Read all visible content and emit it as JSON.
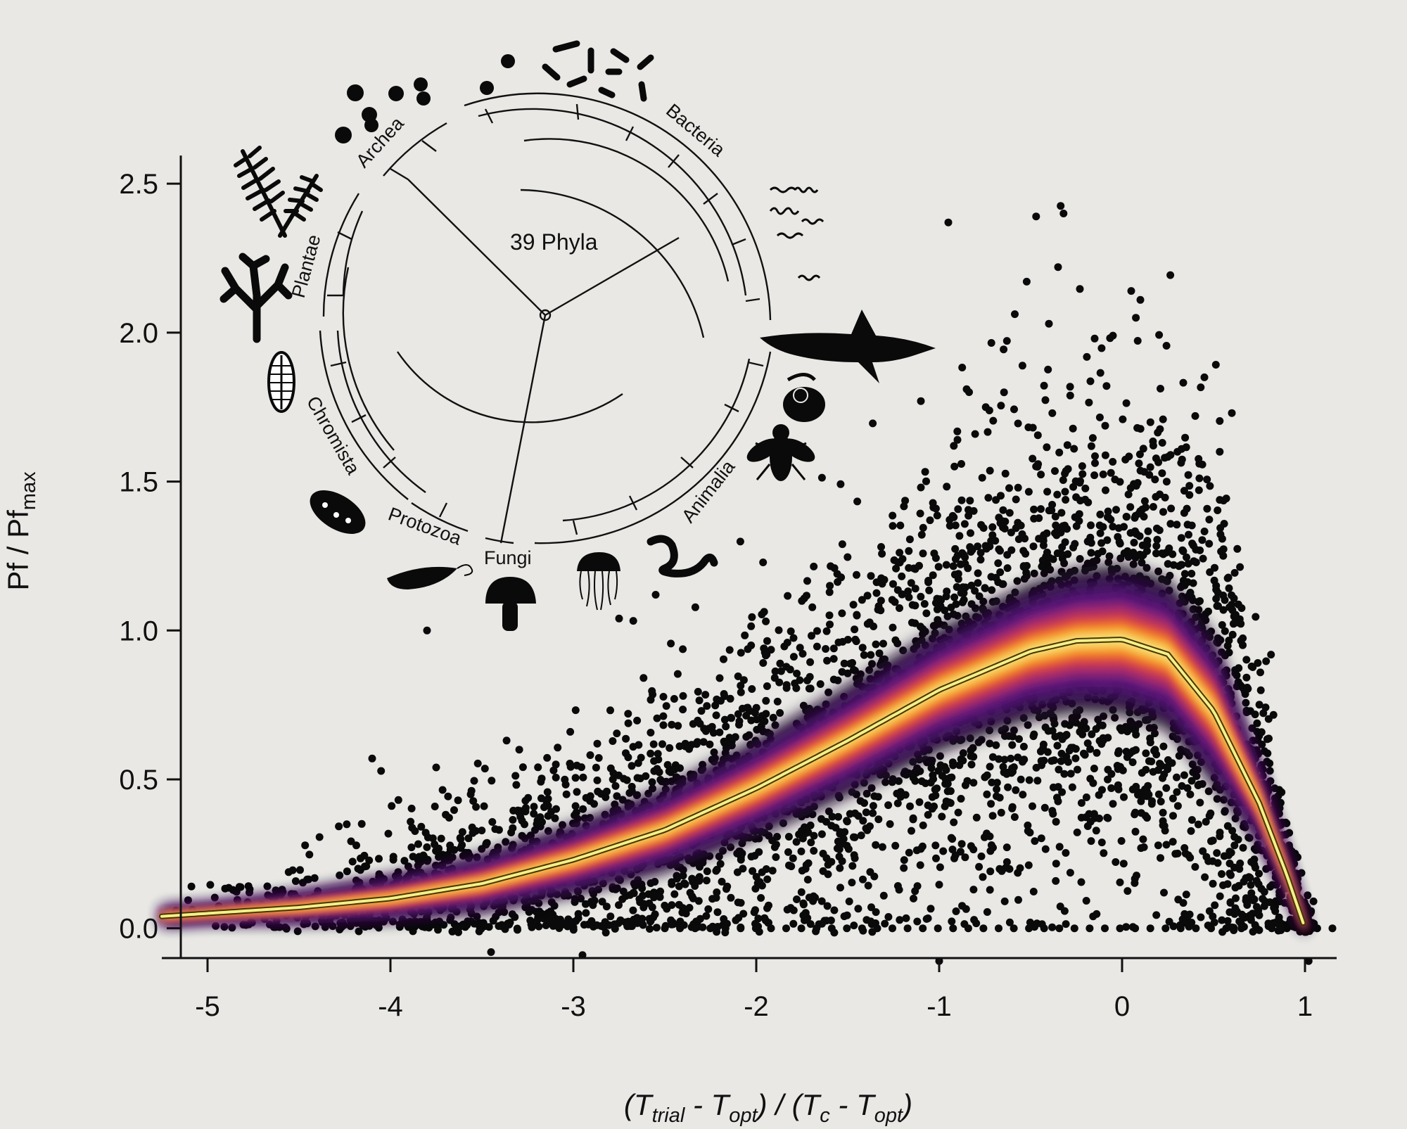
{
  "chart_data": {
    "type": "scatter",
    "subtype": "density-scatter with fitted curve",
    "title": "",
    "xlabel": "(T_trial - T_opt) / (T_c - T_opt)",
    "xlabel_parts": [
      "(T",
      "trial",
      " - T",
      "opt",
      ") / (T",
      "c",
      " - T",
      "opt",
      ")"
    ],
    "ylabel": "Pf / Pf_max",
    "ylabel_parts": [
      "Pf / Pf",
      "max"
    ],
    "xlim": [
      -5.25,
      1.25
    ],
    "ylim": [
      -0.1,
      2.55
    ],
    "xticks": [
      -5,
      -4,
      -3,
      -2,
      -1,
      0,
      1
    ],
    "xtick_labels": [
      "-5",
      "-4",
      "-3",
      "-2",
      "-1",
      "0",
      "1"
    ],
    "yticks": [
      0.0,
      0.5,
      1.0,
      1.5,
      2.0,
      2.5
    ],
    "ytick_labels": [
      "0.0",
      "0.5",
      "1.0",
      "1.5",
      "2.0",
      "2.5"
    ],
    "grid": false,
    "legend": "none",
    "fit_curve": {
      "x": [
        -5.25,
        -5.0,
        -4.5,
        -4.0,
        -3.5,
        -3.0,
        -2.5,
        -2.0,
        -1.5,
        -1.0,
        -0.5,
        -0.25,
        0.0,
        0.25,
        0.5,
        0.75,
        0.9,
        1.0
      ],
      "y": [
        0.04,
        0.05,
        0.07,
        0.1,
        0.15,
        0.23,
        0.33,
        0.47,
        0.63,
        0.8,
        0.93,
        0.965,
        0.97,
        0.92,
        0.73,
        0.42,
        0.18,
        0.0
      ],
      "color": "#f3f08a",
      "outline_color": "#4a3500"
    },
    "density_colors": [
      "#1a0a28",
      "#3a0d5e",
      "#6b1a84",
      "#a52a6e",
      "#d8434c",
      "#f2782c",
      "#f9b02e",
      "#f6e98a"
    ],
    "scatter_color": "#0a0a0a",
    "outlier_points": [
      {
        "x": -0.95,
        "y": 2.37
      },
      {
        "x": -0.47,
        "y": 2.39
      },
      {
        "x": -0.32,
        "y": 2.4
      },
      {
        "x": -0.35,
        "y": 2.22
      },
      {
        "x": -0.4,
        "y": 2.03
      },
      {
        "x": 0.05,
        "y": 2.14
      },
      {
        "x": 0.1,
        "y": 2.11
      },
      {
        "x": -0.15,
        "y": 1.98
      },
      {
        "x": -0.05,
        "y": 1.99
      },
      {
        "x": 0.45,
        "y": 1.85
      },
      {
        "x": -0.85,
        "y": 1.81
      },
      {
        "x": 0.6,
        "y": 1.73
      },
      {
        "x": -1.1,
        "y": 1.77
      },
      {
        "x": -0.92,
        "y": 1.62
      },
      {
        "x": -0.9,
        "y": 1.64
      },
      {
        "x": -1.1,
        "y": 1.48
      },
      {
        "x": -1.3,
        "y": 1.17
      },
      {
        "x": -1.2,
        "y": 1.24
      },
      {
        "x": -0.58,
        "y": 1.44
      },
      {
        "x": 0.22,
        "y": 1.63
      },
      {
        "x": 0.4,
        "y": 1.72
      },
      {
        "x": -1.05,
        "y": 1.37
      },
      {
        "x": -1.45,
        "y": 1.05
      },
      {
        "x": -3.8,
        "y": 1.0
      },
      {
        "x": -2.55,
        "y": 1.12
      },
      {
        "x": -2.2,
        "y": 0.84
      },
      {
        "x": -2.4,
        "y": 0.78
      },
      {
        "x": -4.1,
        "y": 0.57
      },
      {
        "x": -3.75,
        "y": 0.54
      },
      {
        "x": -2.05,
        "y": 0.74
      },
      {
        "x": -2.75,
        "y": 1.04
      },
      {
        "x": -1.55,
        "y": 0.96
      },
      {
        "x": -2.3,
        "y": 0.73
      },
      {
        "x": -3.55,
        "y": 0.32
      },
      {
        "x": -3.2,
        "y": 0.35
      },
      {
        "x": -3.45,
        "y": -0.08
      },
      {
        "x": -2.95,
        "y": -0.09
      },
      {
        "x": -1.0,
        "y": -0.11
      },
      {
        "x": 1.02,
        "y": -0.11
      }
    ],
    "baseline_zero_points": {
      "x_min": -2.5,
      "x_max": 1.15,
      "y": 0.0,
      "count": 45
    },
    "inset_tree": {
      "center_label": "39 Phyla",
      "clades": [
        "Archea",
        "Bacteria",
        "Plantae",
        "Chromista",
        "Protozoa",
        "Fungi",
        "Animalia"
      ]
    }
  }
}
